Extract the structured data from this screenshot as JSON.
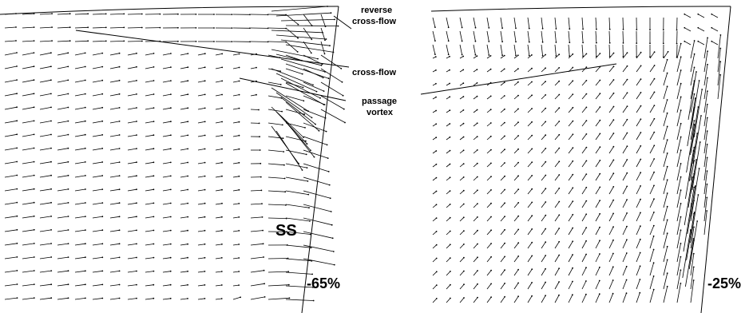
{
  "left_panel": {
    "surface_label": "SS",
    "position_label": "-65%"
  },
  "right_panel": {
    "position_label": "-25%"
  },
  "annotations": {
    "reverse_crossflow": [
      "reverse",
      "cross-flow"
    ],
    "crossflow": "cross-flow",
    "passage_vortex": [
      "passage",
      "vortex"
    ]
  },
  "colors": {
    "vector": "#000000",
    "background": "#ffffff"
  }
}
